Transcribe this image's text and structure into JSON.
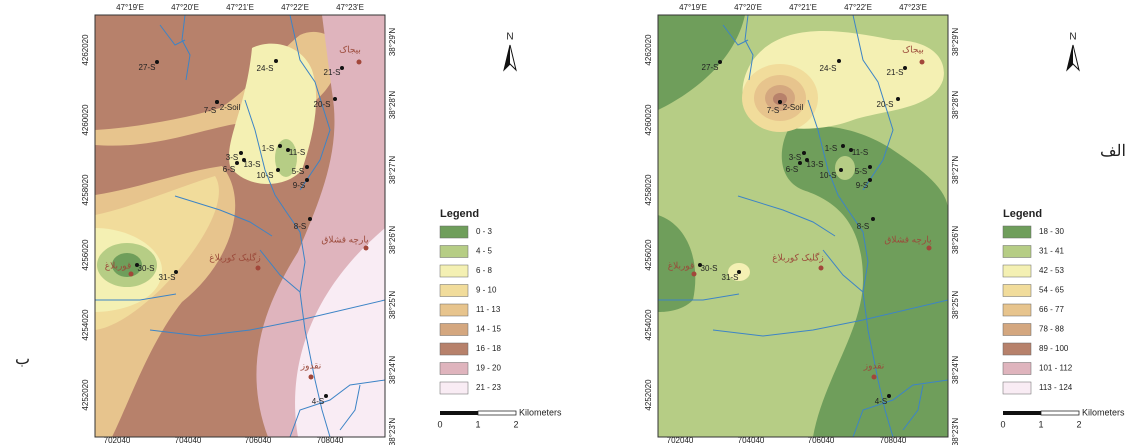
{
  "panels": [
    {
      "letter": "ب",
      "north": "N",
      "legend": {
        "title": "Legend",
        "classes": [
          {
            "label": "0 - 3",
            "color": "#6f9e5b"
          },
          {
            "label": "4 - 5",
            "color": "#b6cd85"
          },
          {
            "label": "6 - 8",
            "color": "#f4f0b3"
          },
          {
            "label": "9 - 10",
            "color": "#f1dc9b"
          },
          {
            "label": "11 - 13",
            "color": "#e7c48d"
          },
          {
            "label": "14 - 15",
            "color": "#d4a77f"
          },
          {
            "label": "16 - 18",
            "color": "#b7816b"
          },
          {
            "label": "19 - 20",
            "color": "#dfb4bd"
          },
          {
            "label": "21 - 23",
            "color": "#f9ecf4"
          }
        ]
      },
      "scale": {
        "unit": "Kilometers",
        "ticks": [
          "0",
          "1",
          "2"
        ]
      },
      "top_ticks": [
        "47°19'E",
        "47°20'E",
        "47°21'E",
        "47°22'E",
        "47°23'E"
      ],
      "bottom_ticks": [
        "702040",
        "704040",
        "706040",
        "708040"
      ],
      "left_ticks": [
        "4262020",
        "4260020",
        "4258020",
        "4256020",
        "4254020",
        "4252020"
      ],
      "right_ticks": [
        "38°29'N",
        "38°28'N",
        "38°27'N",
        "38°26'N",
        "38°25'N",
        "38°24'N",
        "38°23'N"
      ],
      "samples": [
        "27-S",
        "24-S",
        "21-S",
        "20-S",
        "7-S",
        "2-Soil",
        "1-S",
        "11-S",
        "3-S",
        "13-S",
        "6-S",
        "10-S",
        "5-S",
        "9-S",
        "8-S",
        "30-S",
        "31-S",
        "4-S"
      ],
      "places": [
        "بیجاک",
        "پارچه قشلاق",
        "زگلیک کوربلاغ",
        "قوربلاغ",
        "نقدوز"
      ]
    },
    {
      "letter": "الف",
      "north": "N",
      "legend": {
        "title": "Legend",
        "classes": [
          {
            "label": "18 - 30",
            "color": "#6f9e5b"
          },
          {
            "label": "31 - 41",
            "color": "#b6cd85"
          },
          {
            "label": "42 - 53",
            "color": "#f4f0b3"
          },
          {
            "label": "54 - 65",
            "color": "#f1dc9b"
          },
          {
            "label": "66 - 77",
            "color": "#e7c48d"
          },
          {
            "label": "78 - 88",
            "color": "#d4a77f"
          },
          {
            "label": "89 - 100",
            "color": "#b7816b"
          },
          {
            "label": "101 - 112",
            "color": "#dfb4bd"
          },
          {
            "label": "113 - 124",
            "color": "#f9ecf4"
          }
        ]
      },
      "scale": {
        "unit": "Kilometers",
        "ticks": [
          "0",
          "1",
          "2"
        ]
      },
      "top_ticks": [
        "47°19'E",
        "47°20'E",
        "47°21'E",
        "47°22'E",
        "47°23'E"
      ],
      "bottom_ticks": [
        "702040",
        "704040",
        "706040",
        "708040"
      ],
      "left_ticks": [
        "4262020",
        "4260020",
        "4258020",
        "4256020",
        "4254020",
        "4252020"
      ],
      "right_ticks": [
        "38°29'N",
        "38°28'N",
        "38°27'N",
        "38°26'N",
        "38°25'N",
        "38°24'N",
        "38°23'N"
      ],
      "samples": [
        "27-S",
        "24-S",
        "21-S",
        "20-S",
        "7-S",
        "2-Soil",
        "1-S",
        "11-S",
        "3-S",
        "13-S",
        "6-S",
        "10-S",
        "5-S",
        "9-S",
        "8-S",
        "30-S",
        "31-S",
        "4-S"
      ],
      "places": [
        "بیجاک",
        "پارچه قشلاق",
        "زگلیک کوربلاغ",
        "قوربلاغ",
        "نقدوز"
      ]
    }
  ]
}
